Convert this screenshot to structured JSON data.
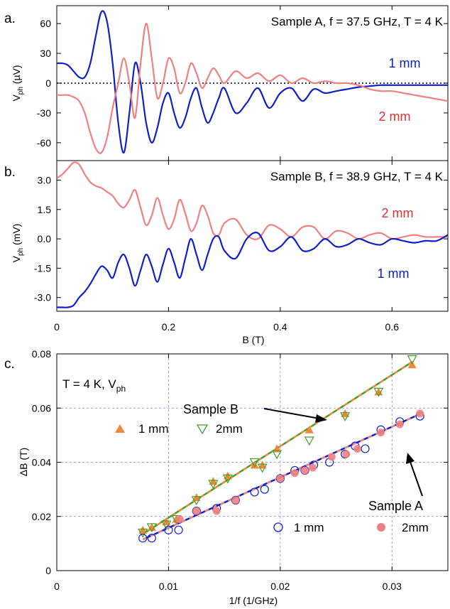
{
  "colors": {
    "blue": "#1020c8",
    "pink": "#f08080",
    "orange": "#f0883c",
    "green": "#40a028",
    "grid": "#8080e0"
  },
  "chart_data": [
    {
      "type": "line",
      "panel_label": "a.",
      "annotation": "Sample A, f = 37.5 GHz, T = 4 K",
      "ylabel": "V",
      "ylabel_sub": "ph",
      "ylabel_unit": " (µV)",
      "xlim": [
        0,
        0.7
      ],
      "ylim": [
        -78,
        78
      ],
      "yticks": [
        60,
        30,
        0,
        -30,
        -60
      ],
      "ytick_labels": [
        "60",
        "30",
        "0",
        "-30",
        "-60"
      ],
      "zero_line": "dotted",
      "series": [
        {
          "name": "1 mm",
          "color": "#1020c8",
          "x": [
            0,
            0.01,
            0.02,
            0.03,
            0.04,
            0.05,
            0.06,
            0.07,
            0.08,
            0.09,
            0.1,
            0.11,
            0.12,
            0.13,
            0.14,
            0.15,
            0.16,
            0.17,
            0.18,
            0.19,
            0.2,
            0.21,
            0.22,
            0.23,
            0.24,
            0.25,
            0.26,
            0.27,
            0.28,
            0.29,
            0.3,
            0.32,
            0.34,
            0.36,
            0.38,
            0.4,
            0.42,
            0.44,
            0.46,
            0.48,
            0.5,
            0.52,
            0.54,
            0.56,
            0.58,
            0.6,
            0.62,
            0.64,
            0.66,
            0.68,
            0.7
          ],
          "y": [
            20,
            20,
            18,
            12,
            6,
            6,
            20,
            48,
            72,
            62,
            20,
            -40,
            -70,
            -30,
            20,
            0,
            -40,
            -60,
            -45,
            -20,
            -10,
            -30,
            -45,
            -35,
            -15,
            -5,
            -25,
            -40,
            -30,
            -15,
            -5,
            -30,
            -20,
            -5,
            -25,
            -10,
            -5,
            -18,
            -6,
            -10,
            -8,
            -6,
            -4,
            -3,
            -2,
            -2,
            -2,
            -2,
            -2,
            -2,
            -2
          ]
        },
        {
          "name": "2 mm",
          "color": "#f08080",
          "x": [
            0,
            0.01,
            0.02,
            0.03,
            0.04,
            0.05,
            0.06,
            0.07,
            0.08,
            0.09,
            0.1,
            0.11,
            0.12,
            0.13,
            0.14,
            0.15,
            0.16,
            0.17,
            0.18,
            0.19,
            0.2,
            0.21,
            0.22,
            0.23,
            0.24,
            0.25,
            0.26,
            0.27,
            0.28,
            0.29,
            0.3,
            0.32,
            0.34,
            0.36,
            0.38,
            0.4,
            0.42,
            0.44,
            0.46,
            0.48,
            0.5,
            0.52,
            0.54,
            0.56,
            0.58,
            0.6,
            0.62,
            0.64,
            0.66,
            0.68,
            0.7
          ],
          "y": [
            -12,
            -12,
            -12,
            -14,
            -18,
            -30,
            -50,
            -66,
            -70,
            -55,
            -25,
            0,
            25,
            0,
            -35,
            20,
            60,
            25,
            -15,
            0,
            25,
            15,
            -10,
            0,
            20,
            10,
            -5,
            5,
            15,
            8,
            0,
            12,
            5,
            10,
            2,
            8,
            0,
            5,
            0,
            2,
            0,
            0,
            -2,
            -6,
            -8,
            -8,
            -10,
            -12,
            -14,
            -16,
            -18
          ]
        }
      ]
    },
    {
      "type": "line",
      "panel_label": "b.",
      "annotation": "Sample B, f = 38.9 GHz, T = 4 K",
      "ylabel": "V",
      "ylabel_sub": "ph",
      "ylabel_unit": " (mV)",
      "xlabel": "B (T)",
      "xlim": [
        0,
        0.7
      ],
      "ylim": [
        -3.7,
        4
      ],
      "yticks": [
        3.0,
        1.5,
        0.0,
        -1.5,
        -3.0
      ],
      "ytick_labels": [
        "3.0",
        "1.5",
        "0.0",
        "-1.5",
        "-3.0"
      ],
      "xticks": [
        0,
        0.2,
        0.4,
        0.6
      ],
      "xtick_labels": [
        "0",
        "0.2",
        "0.4",
        "0.6"
      ],
      "series": [
        {
          "name": "2 mm",
          "color": "#f08080",
          "x": [
            0,
            0.01,
            0.02,
            0.03,
            0.04,
            0.05,
            0.06,
            0.07,
            0.08,
            0.09,
            0.1,
            0.11,
            0.12,
            0.13,
            0.14,
            0.15,
            0.16,
            0.17,
            0.18,
            0.19,
            0.2,
            0.21,
            0.22,
            0.23,
            0.24,
            0.25,
            0.26,
            0.27,
            0.28,
            0.29,
            0.3,
            0.32,
            0.34,
            0.36,
            0.38,
            0.4,
            0.42,
            0.44,
            0.46,
            0.48,
            0.5,
            0.52,
            0.54,
            0.56,
            0.58,
            0.6,
            0.62,
            0.64,
            0.66,
            0.68,
            0.7
          ],
          "y": [
            3.1,
            3.3,
            3.6,
            3.9,
            3.8,
            3.3,
            2.9,
            2.7,
            2.6,
            2.4,
            2.2,
            1.8,
            1.6,
            2.0,
            2.5,
            1.6,
            0.7,
            1.2,
            2.1,
            1.2,
            0.5,
            1.0,
            2.0,
            1.3,
            0.4,
            0.8,
            1.7,
            1.2,
            0.3,
            0.2,
            0.8,
            1.0,
            0.2,
            0.0,
            0.7,
            0.5,
            0.1,
            0.6,
            0.6,
            0.0,
            0.4,
            0.3,
            0.0,
            0.2,
            0.3,
            0.0,
            0.1,
            0.2,
            0.1,
            0.1,
            0.1
          ]
        },
        {
          "name": "1 mm",
          "color": "#1020c8",
          "x": [
            0,
            0.01,
            0.02,
            0.03,
            0.04,
            0.05,
            0.06,
            0.07,
            0.08,
            0.09,
            0.1,
            0.11,
            0.12,
            0.13,
            0.14,
            0.15,
            0.16,
            0.17,
            0.18,
            0.19,
            0.2,
            0.21,
            0.22,
            0.23,
            0.24,
            0.25,
            0.26,
            0.27,
            0.28,
            0.29,
            0.3,
            0.32,
            0.34,
            0.36,
            0.38,
            0.4,
            0.42,
            0.44,
            0.46,
            0.48,
            0.5,
            0.52,
            0.54,
            0.56,
            0.58,
            0.6,
            0.62,
            0.64,
            0.66,
            0.68,
            0.7
          ],
          "y": [
            -3.5,
            -3.5,
            -3.5,
            -3.4,
            -3.0,
            -2.7,
            -2.3,
            -1.8,
            -1.4,
            -1.6,
            -2.0,
            -1.2,
            -0.8,
            -1.5,
            -2.4,
            -1.6,
            -0.8,
            -1.4,
            -2.2,
            -1.3,
            -0.5,
            -1.2,
            -2.0,
            -1.0,
            0.0,
            -0.8,
            -1.6,
            -0.8,
            0.0,
            0.1,
            -0.6,
            -1.0,
            0.0,
            0.3,
            -0.6,
            -0.4,
            0.1,
            -0.6,
            -0.5,
            0.0,
            -0.4,
            -0.3,
            0.0,
            -0.2,
            -0.3,
            0.0,
            -0.1,
            -0.2,
            -0.1,
            -0.1,
            0.2
          ]
        }
      ]
    },
    {
      "type": "scatter",
      "panel_label": "c.",
      "annotation": "T = 4 K, V",
      "annotation_sub": "ph",
      "ylabel": "ΔB (T)",
      "xlabel": "1/f (1/GHz)",
      "xlim": [
        0,
        0.035
      ],
      "ylim": [
        0,
        0.08
      ],
      "xticks": [
        0,
        0.01,
        0.02,
        0.03
      ],
      "xtick_labels": [
        "0",
        "0.01",
        "0.02",
        "0.03"
      ],
      "yticks": [
        0,
        0.02,
        0.04,
        0.06,
        0.08
      ],
      "ytick_labels": [
        "0",
        "0.02",
        "0.04",
        "0.06",
        "0.08"
      ],
      "grid": true,
      "groups": [
        {
          "label": "Sample B",
          "series": [
            {
              "name": "1 mm",
              "marker": "triangle-up-filled",
              "color": "#f0883c",
              "x": [
                0.0077,
                0.0085,
                0.0098,
                0.0107,
                0.0125,
                0.014,
                0.0153,
                0.0177,
                0.0184,
                0.0197,
                0.0226,
                0.0258,
                0.0288,
                0.0318
              ],
              "y": [
                0.015,
                0.016,
                0.018,
                0.019,
                0.027,
                0.033,
                0.035,
                0.039,
                0.039,
                0.045,
                0.052,
                0.058,
                0.066,
                0.076
              ]
            },
            {
              "name": "2mm",
              "marker": "triangle-down-open",
              "color": "#40a028",
              "x": [
                0.0077,
                0.0085,
                0.0098,
                0.0107,
                0.0125,
                0.014,
                0.0153,
                0.0177,
                0.0184,
                0.0197,
                0.0226,
                0.0258,
                0.0288,
                0.0318
              ],
              "y": [
                0.014,
                0.016,
                0.017,
                0.019,
                0.026,
                0.032,
                0.034,
                0.04,
                0.038,
                0.043,
                0.048,
                0.057,
                0.066,
                0.078
              ]
            }
          ],
          "fit": {
            "x": [
              0.0077,
              0.0318
            ],
            "y": [
              0.0135,
              0.077
            ]
          }
        },
        {
          "label": "Sample A",
          "series": [
            {
              "name": "1 mm",
              "marker": "circle-open",
              "color": "#1020c8",
              "x": [
                0.0077,
                0.0085,
                0.01,
                0.0109,
                0.0125,
                0.0143,
                0.016,
                0.0177,
                0.0186,
                0.02,
                0.0213,
                0.0222,
                0.023,
                0.0244,
                0.0258,
                0.0267,
                0.0276,
                0.029,
                0.0307,
                0.0325
              ],
              "y": [
                0.012,
                0.012,
                0.015,
                0.015,
                0.022,
                0.023,
                0.026,
                0.029,
                0.03,
                0.034,
                0.037,
                0.037,
                0.039,
                0.04,
                0.043,
                0.046,
                0.045,
                0.052,
                0.055,
                0.057
              ]
            },
            {
              "name": "2mm",
              "marker": "circle-filled",
              "color": "#f08080",
              "x": [
                0.011,
                0.0125,
                0.0143,
                0.016,
                0.02,
                0.0213,
                0.0222,
                0.0229,
                0.0246,
                0.0259,
                0.0269,
                0.029,
                0.0307,
                0.0325
              ],
              "y": [
                0.019,
                0.022,
                0.022,
                0.026,
                0.034,
                0.036,
                0.037,
                0.038,
                0.042,
                0.043,
                0.045,
                0.051,
                0.054,
                0.058
              ]
            }
          ],
          "fit": {
            "x": [
              0.0077,
              0.0325
            ],
            "y": [
              0.0115,
              0.0578
            ]
          }
        }
      ]
    }
  ]
}
